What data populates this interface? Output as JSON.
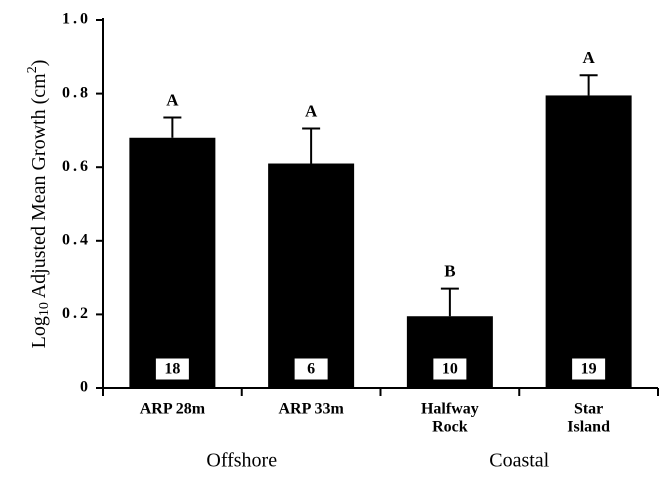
{
  "chart_data": {
    "type": "bar",
    "y_label": [
      "Log",
      "10",
      " Adjusted Mean Growth (cm",
      "2",
      ")"
    ],
    "categories": [
      [
        "ARP  28m"
      ],
      [
        "ARP  33m"
      ],
      [
        "Halfway",
        "Rock"
      ],
      [
        "Star",
        "Island"
      ]
    ],
    "values": [
      0.68,
      0.61,
      0.195,
      0.795
    ],
    "errors": [
      0.055,
      0.095,
      0.075,
      0.055
    ],
    "letters": [
      "A",
      "A",
      "B",
      "A"
    ],
    "sample_sizes": [
      18,
      6,
      10,
      19
    ],
    "groups": [
      "Offshore",
      "Coastal"
    ],
    "color": "#000000",
    "ylim": [
      0,
      1
    ],
    "yticks": [
      0,
      0.2,
      0.4,
      0.6,
      0.8,
      {
        "value": 1,
        "label": "1.0"
      }
    ]
  }
}
